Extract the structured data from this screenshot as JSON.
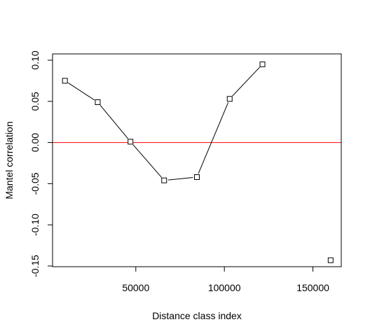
{
  "chart_data": {
    "type": "line",
    "title": "",
    "xlabel": "Distance class index",
    "ylabel": "Mantel correlation",
    "xlim": [
      3000,
      166000
    ],
    "ylim": [
      -0.15,
      0.1
    ],
    "x_ticks": [
      50000,
      100000,
      150000
    ],
    "x_tick_labels": [
      "50000",
      "100000",
      "150000"
    ],
    "y_ticks": [
      -0.15,
      -0.1,
      -0.05,
      0.0,
      0.05,
      0.1
    ],
    "y_tick_labels": [
      "-0.15",
      "-0.10",
      "-0.05",
      "0.00",
      "0.05",
      "0.10"
    ],
    "grid": false,
    "series": [
      {
        "x": [
          10000,
          28500,
          47000,
          66000,
          84500,
          103000,
          121500,
          160000
        ],
        "y": [
          0.075,
          0.049,
          0.001,
          -0.046,
          -0.042,
          0.053,
          0.095,
          -0.143
        ],
        "connected": [
          true,
          true,
          true,
          true,
          true,
          true,
          true,
          false
        ],
        "marker": "open-square",
        "color": "#000000"
      }
    ],
    "reference_lines": [
      {
        "axis": "y",
        "value": 0,
        "color": "#ff0000"
      }
    ]
  }
}
